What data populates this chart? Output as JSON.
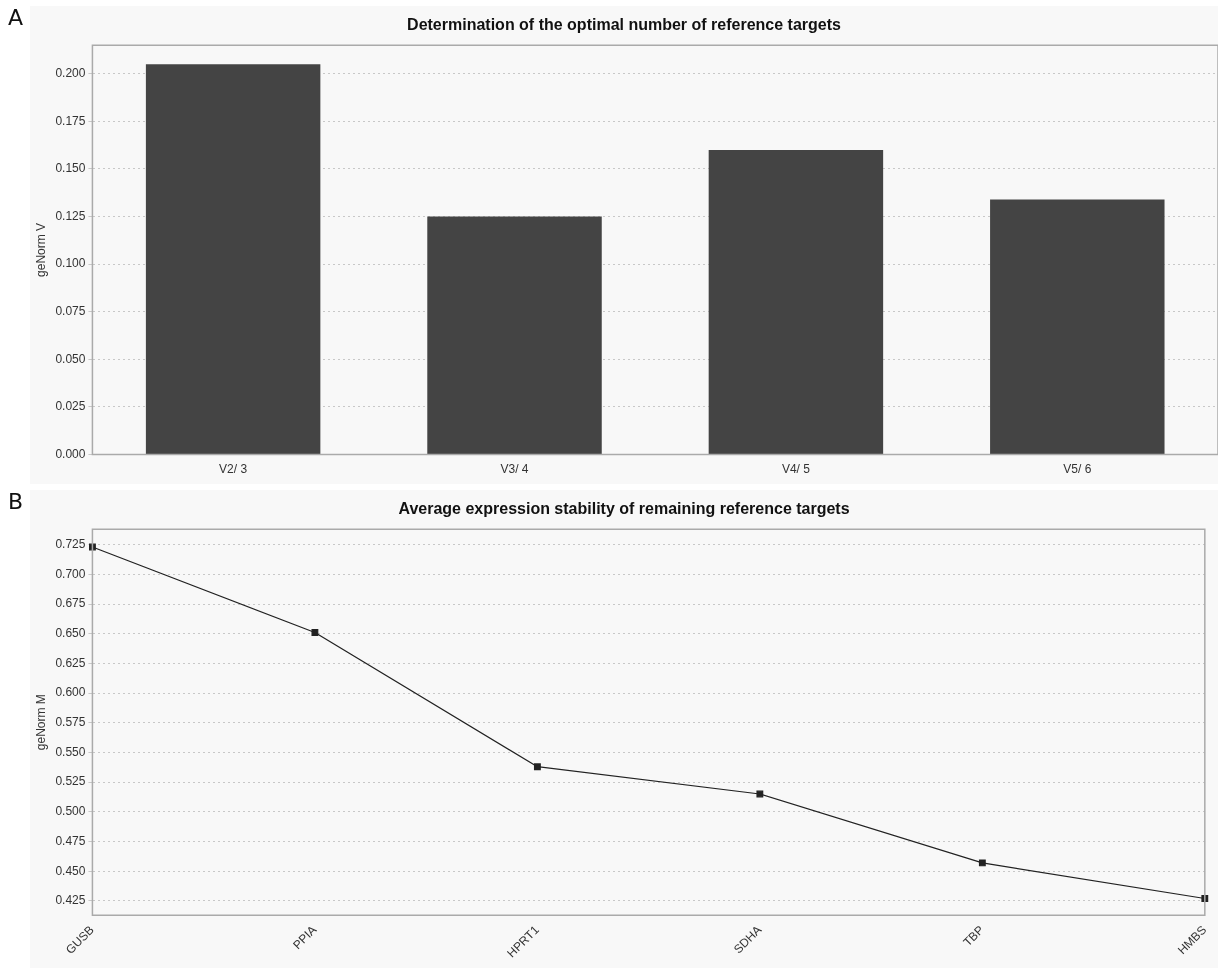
{
  "chart_data": [
    {
      "type": "bar",
      "title": "Determination of the optimal number of reference targets",
      "ylabel": "geNorm V",
      "annotations": [
        "A"
      ],
      "categories": [
        "V2/ 3",
        "V3/ 4",
        "V4/ 5",
        "V5/ 6"
      ],
      "values": [
        0.205,
        0.125,
        0.16,
        0.134
      ],
      "color": "#444444",
      "ylim": [
        0,
        0.215
      ],
      "yticks": [
        {
          "value": 0,
          "label": "0.000"
        },
        {
          "value": 0.025,
          "label": "0.025"
        },
        {
          "value": 0.05,
          "label": "0.050"
        },
        {
          "value": 0.075,
          "label": "0.075"
        },
        {
          "value": 0.1,
          "label": "0.100"
        },
        {
          "value": 0.125,
          "label": "0.125"
        },
        {
          "value": 0.15,
          "label": "0.150"
        },
        {
          "value": 0.175,
          "label": "0.175"
        },
        {
          "value": 0.2,
          "label": "0.200"
        }
      ],
      "grid": "y"
    },
    {
      "type": "line",
      "title": "Average expression stability of remaining reference targets",
      "ylabel": "geNorm M",
      "annotations": [
        "B"
      ],
      "categories": [
        "GUSB",
        "PPIA",
        "HPRT1",
        "SDHA",
        "TBP",
        "HMBS"
      ],
      "values": [
        0.723,
        0.651,
        0.538,
        0.515,
        0.457,
        0.427
      ],
      "color": "#222222",
      "marker": "square",
      "ylim": [
        0.413,
        0.738
      ],
      "yticks": [
        {
          "value": 0.425,
          "label": "0.425"
        },
        {
          "value": 0.45,
          "label": "0.450"
        },
        {
          "value": 0.475,
          "label": "0.475"
        },
        {
          "value": 0.5,
          "label": "0.500"
        },
        {
          "value": 0.525,
          "label": "0.525"
        },
        {
          "value": 0.55,
          "label": "0.550"
        },
        {
          "value": 0.575,
          "label": "0.575"
        },
        {
          "value": 0.6,
          "label": "0.600"
        },
        {
          "value": 0.625,
          "label": "0.625"
        },
        {
          "value": 0.65,
          "label": "0.650"
        },
        {
          "value": 0.675,
          "label": "0.675"
        },
        {
          "value": 0.7,
          "label": "0.700"
        },
        {
          "value": 0.725,
          "label": "0.725"
        }
      ],
      "grid": "y"
    }
  ]
}
